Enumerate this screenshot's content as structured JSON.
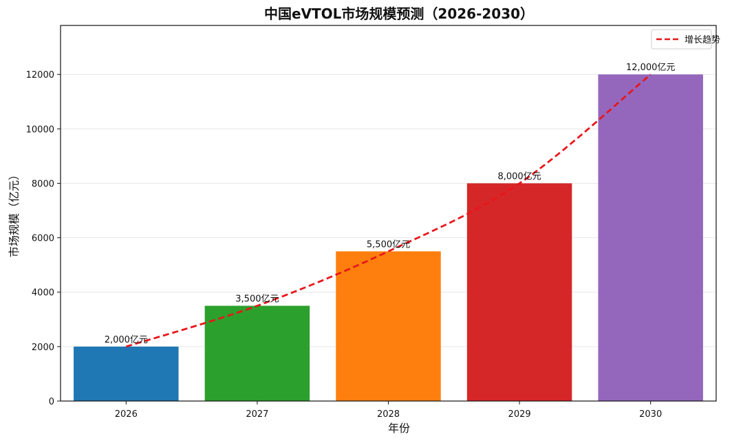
{
  "chart_data": {
    "type": "bar",
    "title": "中国eVTOL市场规模预测（2026-2030）",
    "xlabel": "年份",
    "ylabel": "市场规模（亿元）",
    "categories": [
      "2026",
      "2027",
      "2028",
      "2029",
      "2030"
    ],
    "values": [
      2000,
      3500,
      5500,
      8000,
      12000
    ],
    "data_labels": [
      "2,000亿元",
      "3,500亿元",
      "5,500亿元",
      "8,000亿元",
      "12,000亿元"
    ],
    "bar_colors": [
      "#1f77b4",
      "#2ca02c",
      "#ff7f0e",
      "#d62728",
      "#9467bd"
    ],
    "ylim": [
      0,
      13800
    ],
    "yticks": [
      0,
      2000,
      4000,
      6000,
      8000,
      10000,
      12000
    ],
    "grid": "y",
    "trend": {
      "name": "增长趋势",
      "style": "dashed",
      "color": "#e8161b",
      "x": [
        2026,
        2027,
        2028,
        2029,
        2030
      ],
      "y": [
        2000,
        3500,
        5500,
        8000,
        12000
      ]
    },
    "legend": {
      "position": "top-right",
      "entries": [
        "增长趋势"
      ]
    }
  }
}
